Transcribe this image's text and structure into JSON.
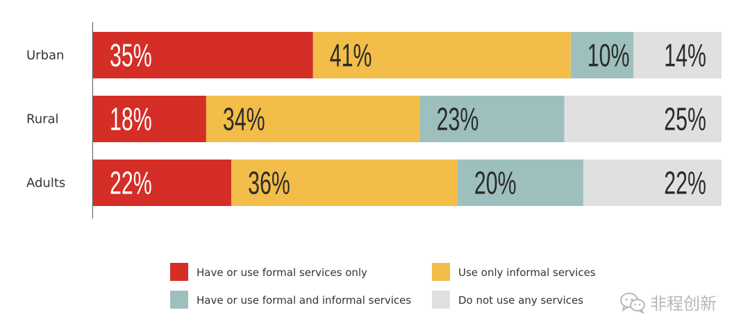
{
  "chart_data": {
    "type": "bar",
    "orientation": "horizontal",
    "stacked": true,
    "normalized_percent": true,
    "categories": [
      "Urban",
      "Rural",
      "Adults"
    ],
    "series": [
      {
        "name": "Have or use formal services only",
        "values": [
          35,
          18,
          22
        ],
        "labels": [
          "35%",
          "18%",
          "22%"
        ],
        "color": "#d42e27"
      },
      {
        "name": "Use only informal services",
        "values": [
          41,
          34,
          36
        ],
        "labels": [
          "41%",
          "34%",
          "36%"
        ],
        "color": "#f2bd48"
      },
      {
        "name": "Have or use formal and informal services",
        "values": [
          10,
          23,
          20
        ],
        "labels": [
          "10%",
          "23%",
          "20%"
        ],
        "color": "#9dc0be"
      },
      {
        "name": "Do not use any services",
        "values": [
          14,
          25,
          22
        ],
        "labels": [
          "14%",
          "25%",
          "22%"
        ],
        "color": "#e0e0e0"
      }
    ],
    "xlim": [
      0,
      100
    ],
    "grid": false,
    "legend_position": "bottom"
  },
  "watermark": {
    "text": "非程创新",
    "icon": "wechat-icon"
  }
}
